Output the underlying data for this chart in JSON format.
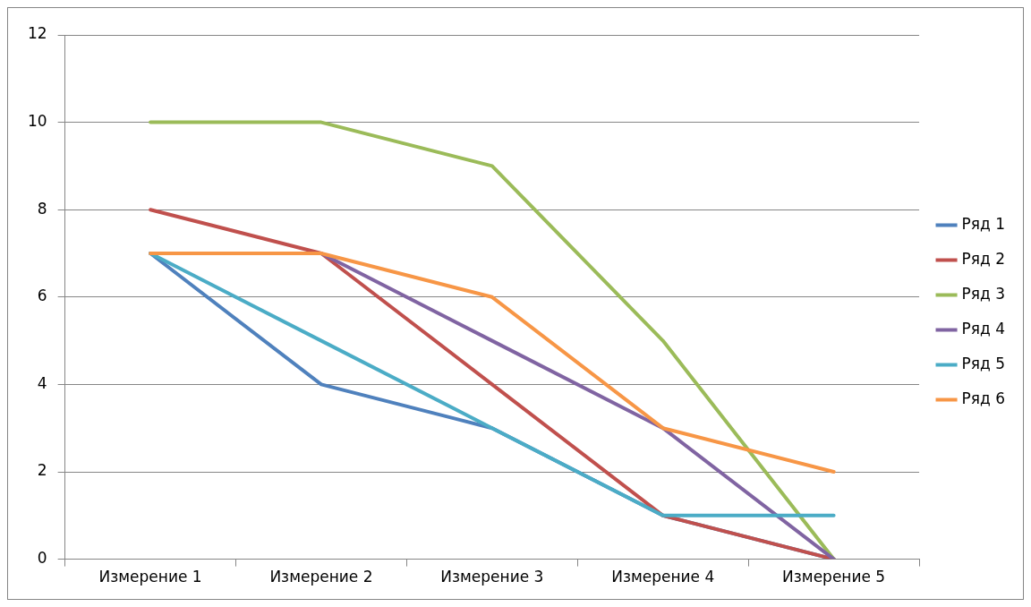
{
  "chart_data": {
    "type": "line",
    "categories": [
      "Измерение 1",
      "Измерение 2",
      "Измерение 3",
      "Измерение 4",
      "Измерение 5"
    ],
    "series": [
      {
        "name": "Ряд 1",
        "color": "#4f81bd",
        "values": [
          7,
          4,
          3,
          1,
          0
        ]
      },
      {
        "name": "Ряд 2",
        "color": "#c0504d",
        "values": [
          8,
          7,
          4,
          1,
          0
        ]
      },
      {
        "name": "Ряд 3",
        "color": "#9bbb59",
        "values": [
          10,
          10,
          9,
          5,
          0
        ]
      },
      {
        "name": "Ряд 4",
        "color": "#8064a2",
        "values": [
          7,
          7,
          5,
          3,
          0
        ]
      },
      {
        "name": "Ряд 5",
        "color": "#4bacc6",
        "values": [
          7,
          5,
          3,
          1,
          1
        ]
      },
      {
        "name": "Ряд 6",
        "color": "#f79646",
        "values": [
          7,
          7,
          6,
          3,
          2
        ]
      }
    ],
    "ylim": [
      0,
      12
    ],
    "yticks": [
      0,
      2,
      4,
      6,
      8,
      10,
      12
    ],
    "grid": "y",
    "legend": "right",
    "marker": "none",
    "line_style": "solid"
  }
}
